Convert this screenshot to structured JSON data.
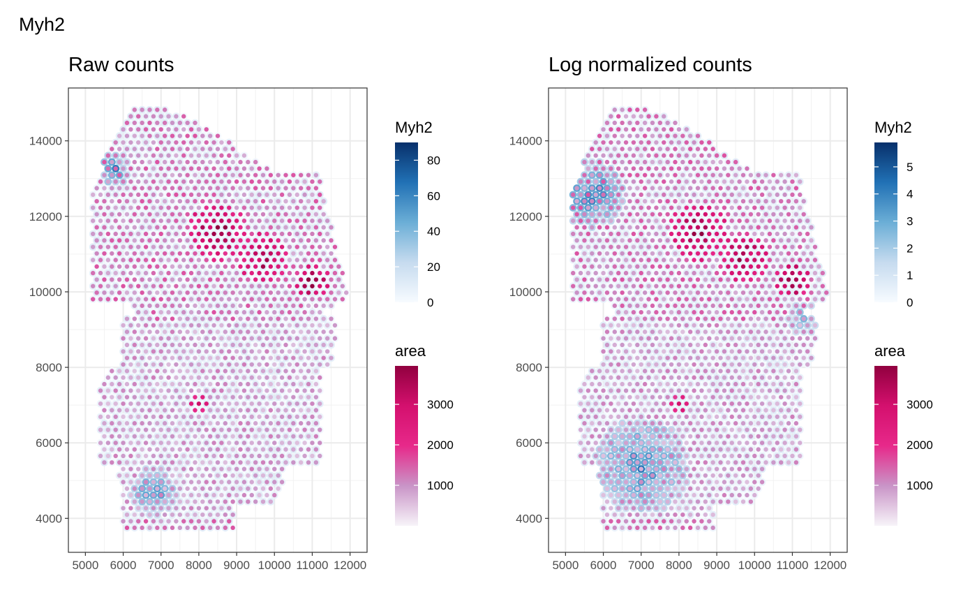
{
  "figure_title": "Myh2",
  "chart_data": [
    {
      "type": "scatter",
      "title": "Raw counts",
      "xlabel": "",
      "ylabel": "",
      "xlim": [
        4550,
        12450
      ],
      "ylim": [
        3100,
        15400
      ],
      "x_ticks": [
        5000,
        6000,
        7000,
        8000,
        9000,
        10000,
        11000,
        12000
      ],
      "x_tick_labels": [
        "5000",
        "6000",
        "7000",
        "8000",
        "9000",
        "10000",
        "11000",
        "12000"
      ],
      "y_ticks": [
        4000,
        6000,
        8000,
        10000,
        12000,
        14000
      ],
      "y_tick_labels": [
        "4000",
        "6000",
        "8000",
        "10000",
        "12000",
        "14000"
      ],
      "grid": true,
      "marker": "open-circle",
      "outline_color_variable": "Myh2",
      "fill_color_variable": "area",
      "legends": [
        {
          "title": "Myh2",
          "ticks": [
            0,
            20,
            40,
            60,
            80
          ],
          "tick_labels": [
            "0",
            "20",
            "40",
            "60",
            "80"
          ],
          "range": [
            0,
            90
          ],
          "colors": [
            "#f7fbff",
            "#c6dbef",
            "#6baed6",
            "#2171b5",
            "#08306b"
          ]
        },
        {
          "title": "area",
          "ticks": [
            1000,
            2000,
            3000
          ],
          "tick_labels": [
            "1000",
            "2000",
            "3000"
          ],
          "range": [
            0,
            3950
          ],
          "colors": [
            "#f7f4f9",
            "#c994c7",
            "#e7298a",
            "#d4106e",
            "#91003f"
          ]
        }
      ],
      "spots": {
        "grid_spacing_x": 200,
        "grid_spacing_y": 173,
        "shape": "tissue section, rounded upper lobe and lower lobe",
        "high_myh2_regions": [
          {
            "x": 5750,
            "y": 13250,
            "radius": 450,
            "peak": 70
          },
          {
            "x": 6800,
            "y": 4700,
            "radius": 650,
            "peak": 65
          },
          {
            "x": 5300,
            "y": 11300,
            "radius": 300,
            "peak": 20
          }
        ],
        "high_area_regions": [
          {
            "x": 8500,
            "y": 11600,
            "radius": 800,
            "peak": 3200
          },
          {
            "x": 9700,
            "y": 10900,
            "radius": 700,
            "peak": 3000
          },
          {
            "x": 11000,
            "y": 10300,
            "radius": 450,
            "peak": 3900
          },
          {
            "x": 8000,
            "y": 7000,
            "radius": 300,
            "peak": 3500
          }
        ]
      }
    },
    {
      "type": "scatter",
      "title": "Log normalized counts",
      "xlabel": "",
      "ylabel": "",
      "xlim": [
        4550,
        12450
      ],
      "ylim": [
        3100,
        15400
      ],
      "x_ticks": [
        5000,
        6000,
        7000,
        8000,
        9000,
        10000,
        11000,
        12000
      ],
      "x_tick_labels": [
        "5000",
        "6000",
        "7000",
        "8000",
        "9000",
        "10000",
        "11000",
        "12000"
      ],
      "y_ticks": [
        4000,
        6000,
        8000,
        10000,
        12000,
        14000
      ],
      "y_tick_labels": [
        "4000",
        "6000",
        "8000",
        "10000",
        "12000",
        "14000"
      ],
      "grid": true,
      "marker": "open-circle",
      "outline_color_variable": "Myh2",
      "fill_color_variable": "area",
      "legends": [
        {
          "title": "Myh2",
          "ticks": [
            0,
            1,
            2,
            3,
            4,
            5
          ],
          "tick_labels": [
            "0",
            "1",
            "2",
            "3",
            "4",
            "5"
          ],
          "range": [
            0,
            5.9
          ],
          "colors": [
            "#f7fbff",
            "#c6dbef",
            "#6baed6",
            "#2171b5",
            "#08306b"
          ]
        },
        {
          "title": "area",
          "ticks": [
            1000,
            2000,
            3000
          ],
          "tick_labels": [
            "1000",
            "2000",
            "3000"
          ],
          "range": [
            0,
            3950
          ],
          "colors": [
            "#f7f4f9",
            "#c994c7",
            "#e7298a",
            "#d4106e",
            "#91003f"
          ]
        }
      ],
      "spots": {
        "grid_spacing_x": 200,
        "grid_spacing_y": 173,
        "shape": "tissue section, rounded upper lobe and lower lobe",
        "high_myh2_regions": [
          {
            "x": 5700,
            "y": 12600,
            "radius": 900,
            "peak": 4.8
          },
          {
            "x": 7000,
            "y": 5400,
            "radius": 1300,
            "peak": 4.6
          },
          {
            "x": 11300,
            "y": 9300,
            "radius": 500,
            "peak": 3.0
          }
        ],
        "high_area_regions": [
          {
            "x": 8500,
            "y": 11600,
            "radius": 800,
            "peak": 3200
          },
          {
            "x": 9700,
            "y": 10900,
            "radius": 700,
            "peak": 3000
          },
          {
            "x": 11000,
            "y": 10300,
            "radius": 450,
            "peak": 3900
          },
          {
            "x": 8000,
            "y": 7000,
            "radius": 300,
            "peak": 3500
          }
        ]
      }
    }
  ]
}
